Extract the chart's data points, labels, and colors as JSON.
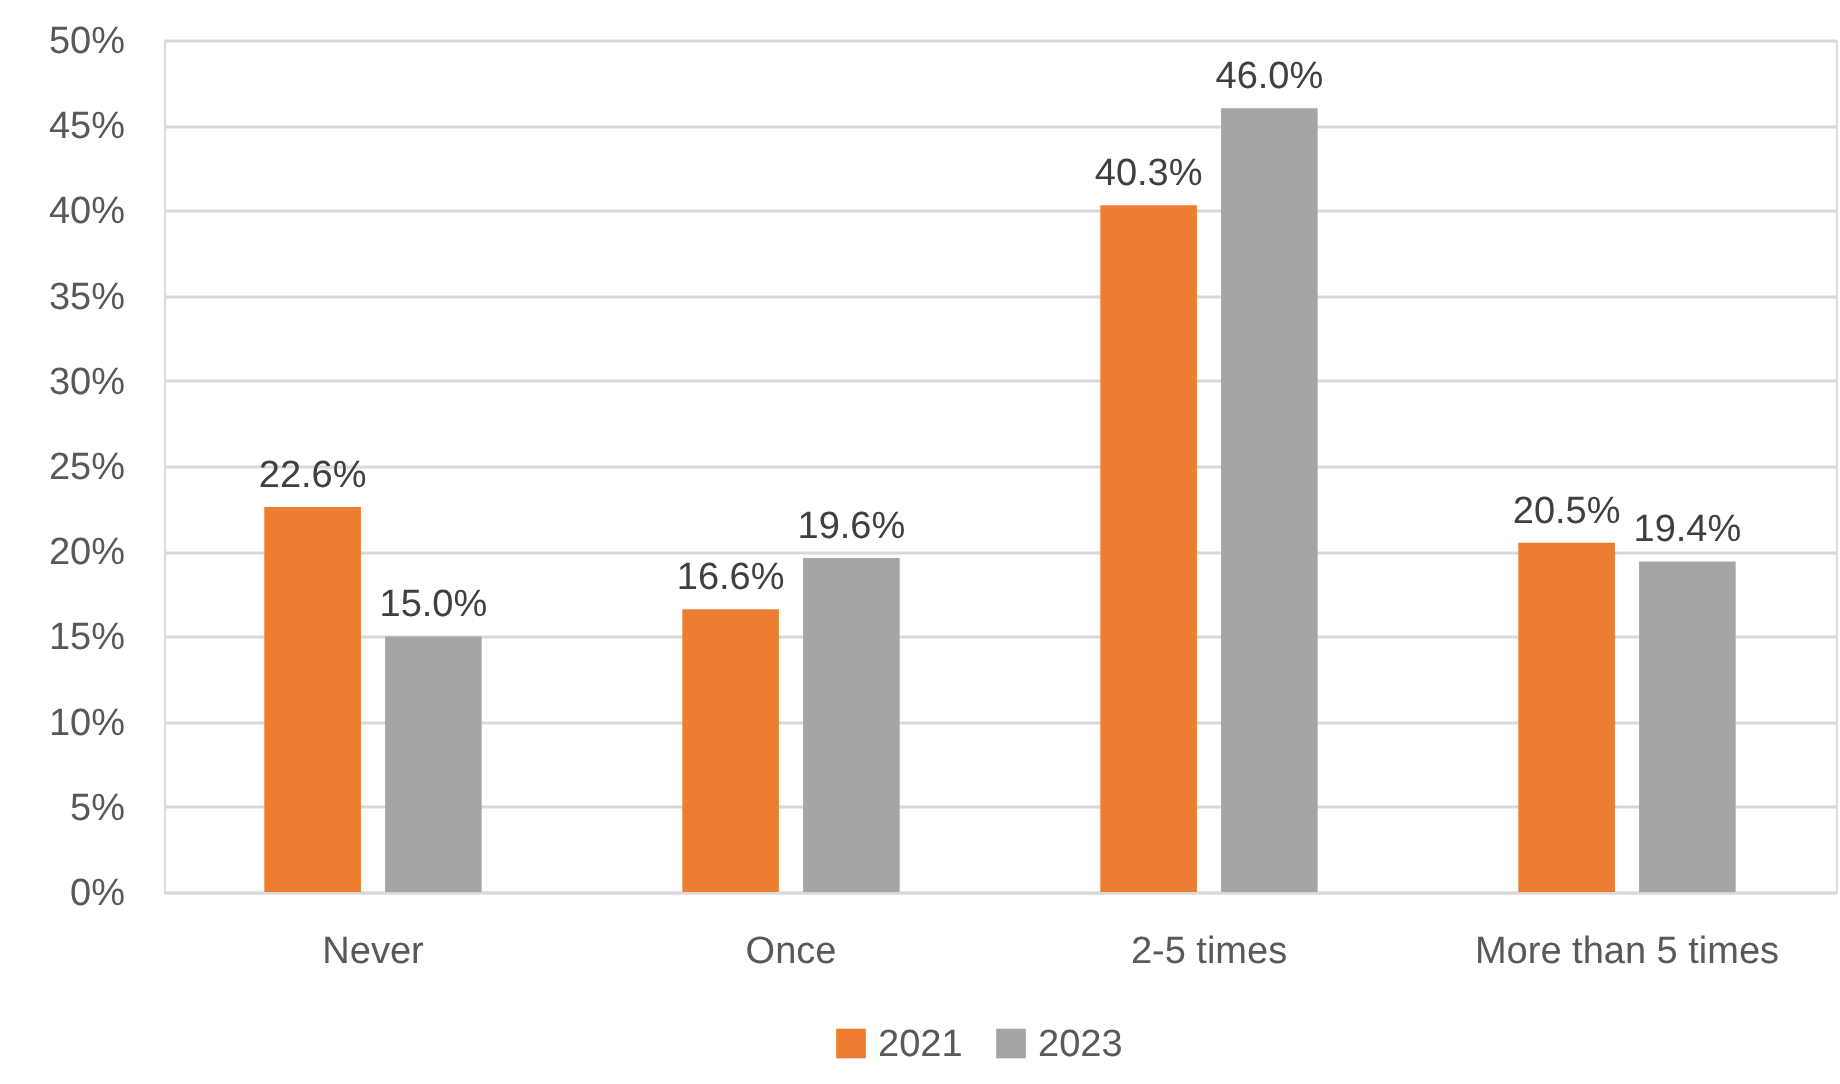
{
  "chart_data": {
    "type": "bar",
    "categories": [
      "Never",
      "Once",
      "2-5 times",
      "More than 5 times"
    ],
    "series": [
      {
        "name": "2021",
        "color": "#ed7d31",
        "values": [
          22.6,
          16.6,
          40.3,
          20.5
        ],
        "value_labels": [
          "22.6%",
          "16.6%",
          "40.3%",
          "20.5%"
        ]
      },
      {
        "name": "2023",
        "color": "#a5a5a5",
        "values": [
          15.0,
          19.6,
          46.0,
          19.4
        ],
        "value_labels": [
          "15.0%",
          "19.6%",
          "46.0%",
          "19.4%"
        ]
      }
    ],
    "ylim": [
      0,
      50
    ],
    "yticks": [
      {
        "value": 0,
        "label": "0%"
      },
      {
        "value": 5,
        "label": "5%"
      },
      {
        "value": 10,
        "label": "10%"
      },
      {
        "value": 15,
        "label": "15%"
      },
      {
        "value": 20,
        "label": "20%"
      },
      {
        "value": 25,
        "label": "25%"
      },
      {
        "value": 30,
        "label": "30%"
      },
      {
        "value": 35,
        "label": "35%"
      },
      {
        "value": 40,
        "label": "40%"
      },
      {
        "value": 45,
        "label": "45%"
      },
      {
        "value": 50,
        "label": "50%"
      }
    ],
    "grid": "y",
    "legend": "bottom"
  }
}
